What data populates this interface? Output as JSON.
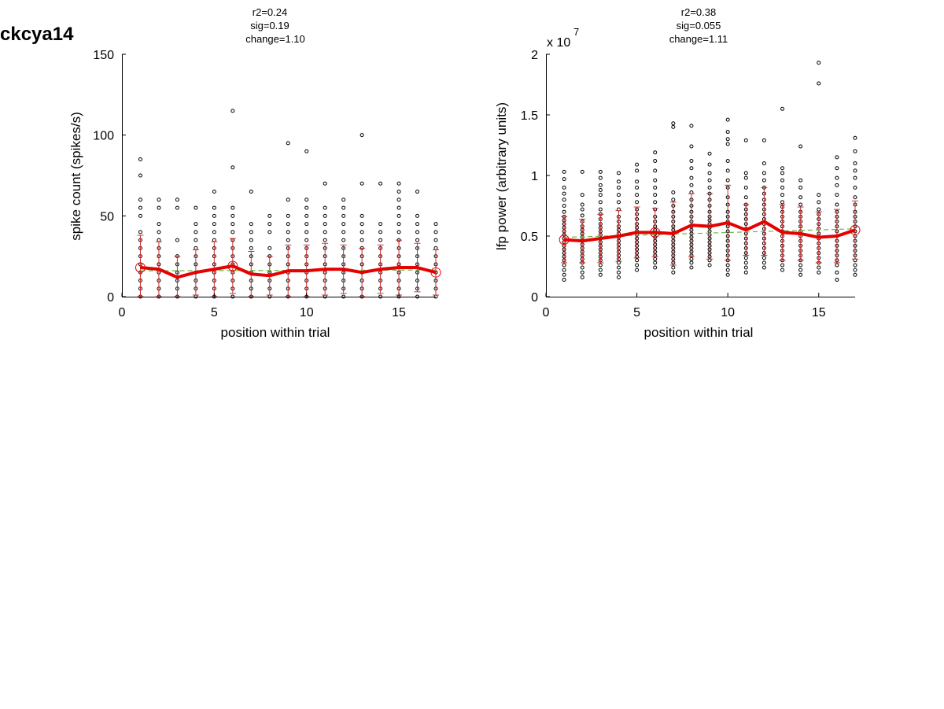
{
  "figure": {
    "title": "ckcya14"
  },
  "chart_data": [
    {
      "type": "scatter",
      "stats": [
        "r2=0.24",
        "sig=0.19",
        "change=1.10"
      ],
      "xlabel": "position within trial",
      "ylabel": "spike count (spikes/s)",
      "exponent_label": "",
      "xlim": [
        0,
        17
      ],
      "ylim": [
        0,
        150
      ],
      "xticks": [
        0,
        5,
        10,
        15
      ],
      "yticks": [
        0,
        50,
        100,
        150
      ],
      "xtick_labels": [
        "0",
        "5",
        "10",
        "15"
      ],
      "ytick_labels": [
        "0",
        "50",
        "100",
        "150"
      ],
      "colors": {
        "trial_points": "#000000",
        "mean_line": "#e60000",
        "error_bars": "#cc3333",
        "fit_line": "#66bb44"
      },
      "trial_points": [
        {
          "x": 1,
          "y": [
            0,
            5,
            10,
            15,
            20,
            25,
            30,
            35,
            40,
            50,
            55,
            60,
            75,
            85
          ]
        },
        {
          "x": 2,
          "y": [
            0,
            5,
            10,
            15,
            20,
            25,
            30,
            35,
            40,
            45,
            55,
            60
          ]
        },
        {
          "x": 3,
          "y": [
            0,
            5,
            10,
            15,
            20,
            25,
            35,
            55,
            60
          ]
        },
        {
          "x": 4,
          "y": [
            0,
            5,
            10,
            15,
            20,
            25,
            30,
            35,
            40,
            45,
            55
          ]
        },
        {
          "x": 5,
          "y": [
            0,
            5,
            10,
            15,
            20,
            25,
            30,
            35,
            40,
            45,
            50,
            55,
            65
          ]
        },
        {
          "x": 6,
          "y": [
            0,
            5,
            10,
            15,
            20,
            25,
            30,
            35,
            40,
            45,
            50,
            55,
            80,
            115
          ]
        },
        {
          "x": 7,
          "y": [
            0,
            5,
            10,
            15,
            20,
            25,
            30,
            35,
            40,
            45,
            65
          ]
        },
        {
          "x": 8,
          "y": [
            0,
            5,
            10,
            15,
            20,
            25,
            30,
            40,
            45,
            50
          ]
        },
        {
          "x": 9,
          "y": [
            0,
            5,
            10,
            15,
            20,
            25,
            30,
            35,
            40,
            45,
            50,
            60,
            95
          ]
        },
        {
          "x": 10,
          "y": [
            0,
            5,
            10,
            15,
            20,
            25,
            30,
            35,
            40,
            45,
            50,
            55,
            60,
            90
          ]
        },
        {
          "x": 11,
          "y": [
            0,
            5,
            10,
            15,
            20,
            25,
            30,
            35,
            40,
            45,
            50,
            55,
            70
          ]
        },
        {
          "x": 12,
          "y": [
            0,
            5,
            10,
            15,
            20,
            25,
            30,
            35,
            40,
            45,
            50,
            55,
            60
          ]
        },
        {
          "x": 13,
          "y": [
            0,
            5,
            10,
            15,
            20,
            25,
            30,
            35,
            40,
            45,
            50,
            70,
            100
          ]
        },
        {
          "x": 14,
          "y": [
            0,
            5,
            10,
            15,
            20,
            25,
            30,
            35,
            40,
            45,
            70
          ]
        },
        {
          "x": 15,
          "y": [
            0,
            5,
            10,
            15,
            20,
            25,
            30,
            35,
            40,
            45,
            50,
            55,
            60,
            65,
            70
          ]
        },
        {
          "x": 16,
          "y": [
            0,
            5,
            10,
            15,
            20,
            25,
            30,
            35,
            40,
            45,
            50,
            65
          ]
        },
        {
          "x": 17,
          "y": [
            0,
            5,
            10,
            15,
            20,
            25,
            30,
            35,
            40,
            45
          ]
        }
      ],
      "mean": {
        "x": [
          1,
          2,
          3,
          4,
          5,
          6,
          7,
          8,
          9,
          10,
          11,
          12,
          13,
          14,
          15,
          16,
          17
        ],
        "y": [
          18,
          17,
          12,
          15,
          17,
          19,
          14,
          13,
          16,
          16,
          17,
          17,
          15,
          17,
          18,
          18,
          15
        ],
        "err": [
          20,
          17,
          13,
          14,
          17,
          17,
          14,
          12,
          16,
          16,
          16,
          15,
          15,
          15,
          17,
          15,
          14
        ]
      },
      "fit": {
        "x": [
          1,
          17
        ],
        "y": [
          16,
          16.5
        ]
      }
    },
    {
      "type": "scatter",
      "stats": [
        "r2=0.38",
        "sig=0.055",
        "change=1.11"
      ],
      "xlabel": "position within trial",
      "ylabel": "lfp power (arbitrary units)",
      "exponent_label": "x 10",
      "exponent_power": "7",
      "xlim": [
        0,
        17
      ],
      "ylim": [
        0,
        2
      ],
      "xticks": [
        0,
        5,
        10,
        15
      ],
      "yticks": [
        0,
        0.5,
        1,
        1.5,
        2
      ],
      "xtick_labels": [
        "0",
        "5",
        "10",
        "15"
      ],
      "ytick_labels": [
        "0",
        "0.5",
        "1",
        "1.5",
        "2"
      ],
      "colors": {
        "trial_points": "#000000",
        "mean_line": "#e60000",
        "error_bars": "#cc3333",
        "fit_line": "#66bb44"
      },
      "trial_points": [
        {
          "x": 1,
          "y": [
            0.14,
            0.18,
            0.22,
            0.26,
            0.3,
            0.33,
            0.36,
            0.39,
            0.42,
            0.45,
            0.48,
            0.51,
            0.54,
            0.57,
            0.6,
            0.63,
            0.66,
            0.7,
            0.75,
            0.8,
            0.85,
            0.9,
            0.97,
            1.03
          ]
        },
        {
          "x": 2,
          "y": [
            0.16,
            0.2,
            0.24,
            0.28,
            0.31,
            0.34,
            0.37,
            0.4,
            0.43,
            0.46,
            0.49,
            0.52,
            0.55,
            0.58,
            0.62,
            0.67,
            0.72,
            0.76,
            0.84,
            1.03
          ]
        },
        {
          "x": 3,
          "y": [
            0.18,
            0.22,
            0.26,
            0.3,
            0.33,
            0.36,
            0.39,
            0.42,
            0.45,
            0.48,
            0.51,
            0.54,
            0.57,
            0.6,
            0.64,
            0.68,
            0.72,
            0.78,
            0.84,
            0.88,
            0.92,
            0.98,
            1.03
          ]
        },
        {
          "x": 4,
          "y": [
            0.16,
            0.2,
            0.24,
            0.28,
            0.31,
            0.34,
            0.37,
            0.4,
            0.43,
            0.46,
            0.49,
            0.52,
            0.55,
            0.58,
            0.62,
            0.66,
            0.72,
            0.78,
            0.84,
            0.9,
            0.95,
            1.02
          ]
        },
        {
          "x": 5,
          "y": [
            0.22,
            0.26,
            0.3,
            0.33,
            0.36,
            0.39,
            0.42,
            0.45,
            0.48,
            0.51,
            0.54,
            0.57,
            0.6,
            0.64,
            0.68,
            0.72,
            0.78,
            0.84,
            0.9,
            0.95,
            1.04,
            1.09
          ]
        },
        {
          "x": 6,
          "y": [
            0.24,
            0.28,
            0.31,
            0.34,
            0.37,
            0.4,
            0.43,
            0.46,
            0.49,
            0.52,
            0.55,
            0.58,
            0.62,
            0.66,
            0.72,
            0.78,
            0.84,
            0.9,
            0.96,
            1.04,
            1.12,
            1.19
          ]
        },
        {
          "x": 7,
          "y": [
            0.2,
            0.24,
            0.28,
            0.31,
            0.34,
            0.37,
            0.4,
            0.43,
            0.46,
            0.49,
            0.52,
            0.55,
            0.58,
            0.62,
            0.66,
            0.7,
            0.75,
            0.8,
            0.86,
            1.4,
            1.43
          ]
        },
        {
          "x": 8,
          "y": [
            0.24,
            0.28,
            0.31,
            0.34,
            0.37,
            0.4,
            0.43,
            0.46,
            0.49,
            0.52,
            0.55,
            0.58,
            0.62,
            0.66,
            0.7,
            0.75,
            0.8,
            0.86,
            0.92,
            0.98,
            1.06,
            1.12,
            1.24,
            1.41
          ]
        },
        {
          "x": 9,
          "y": [
            0.26,
            0.3,
            0.33,
            0.36,
            0.39,
            0.42,
            0.45,
            0.48,
            0.51,
            0.54,
            0.57,
            0.6,
            0.63,
            0.66,
            0.7,
            0.75,
            0.8,
            0.85,
            0.9,
            0.96,
            1.02,
            1.09,
            1.18
          ]
        },
        {
          "x": 10,
          "y": [
            0.18,
            0.22,
            0.26,
            0.3,
            0.34,
            0.38,
            0.42,
            0.46,
            0.5,
            0.54,
            0.58,
            0.62,
            0.66,
            0.7,
            0.76,
            0.82,
            0.9,
            0.96,
            1.04,
            1.12,
            1.26,
            1.3,
            1.36,
            1.46
          ]
        },
        {
          "x": 11,
          "y": [
            0.2,
            0.24,
            0.28,
            0.32,
            0.36,
            0.4,
            0.44,
            0.48,
            0.52,
            0.56,
            0.6,
            0.64,
            0.68,
            0.72,
            0.76,
            0.82,
            0.9,
            0.98,
            1.02,
            1.29
          ]
        },
        {
          "x": 12,
          "y": [
            0.24,
            0.28,
            0.32,
            0.36,
            0.4,
            0.44,
            0.48,
            0.52,
            0.56,
            0.6,
            0.64,
            0.68,
            0.72,
            0.76,
            0.8,
            0.85,
            0.9,
            0.96,
            1.02,
            1.1,
            1.29
          ]
        },
        {
          "x": 13,
          "y": [
            0.22,
            0.26,
            0.3,
            0.34,
            0.38,
            0.42,
            0.46,
            0.5,
            0.54,
            0.58,
            0.62,
            0.66,
            0.7,
            0.74,
            0.78,
            0.84,
            0.9,
            0.96,
            1.02,
            1.06,
            1.55
          ]
        },
        {
          "x": 14,
          "y": [
            0.18,
            0.22,
            0.26,
            0.3,
            0.34,
            0.38,
            0.42,
            0.46,
            0.5,
            0.54,
            0.58,
            0.62,
            0.66,
            0.7,
            0.76,
            0.82,
            0.9,
            0.96,
            1.24
          ]
        },
        {
          "x": 15,
          "y": [
            0.2,
            0.24,
            0.28,
            0.32,
            0.36,
            0.4,
            0.44,
            0.48,
            0.52,
            0.56,
            0.6,
            0.64,
            0.68,
            0.72,
            0.78,
            0.84,
            1.76,
            1.93
          ]
        },
        {
          "x": 16,
          "y": [
            0.14,
            0.2,
            0.26,
            0.3,
            0.34,
            0.38,
            0.42,
            0.46,
            0.5,
            0.54,
            0.58,
            0.62,
            0.66,
            0.7,
            0.76,
            0.84,
            0.92,
            0.98,
            1.06,
            1.15
          ]
        },
        {
          "x": 17,
          "y": [
            0.18,
            0.22,
            0.26,
            0.3,
            0.34,
            0.38,
            0.42,
            0.46,
            0.5,
            0.54,
            0.58,
            0.62,
            0.66,
            0.7,
            0.76,
            0.82,
            0.9,
            0.98,
            1.04,
            1.1,
            1.2,
            1.31
          ]
        }
      ],
      "mean": {
        "x": [
          1,
          2,
          3,
          4,
          5,
          6,
          7,
          8,
          9,
          10,
          11,
          12,
          13,
          14,
          15,
          16,
          17
        ],
        "y": [
          0.47,
          0.46,
          0.48,
          0.5,
          0.53,
          0.53,
          0.52,
          0.59,
          0.58,
          0.61,
          0.55,
          0.62,
          0.53,
          0.52,
          0.49,
          0.5,
          0.55
        ],
        "err": [
          0.19,
          0.18,
          0.2,
          0.21,
          0.21,
          0.2,
          0.26,
          0.26,
          0.27,
          0.31,
          0.21,
          0.28,
          0.23,
          0.22,
          0.21,
          0.22,
          0.24
        ]
      },
      "fit": {
        "x": [
          1,
          17
        ],
        "y": [
          0.49,
          0.56
        ]
      }
    }
  ]
}
